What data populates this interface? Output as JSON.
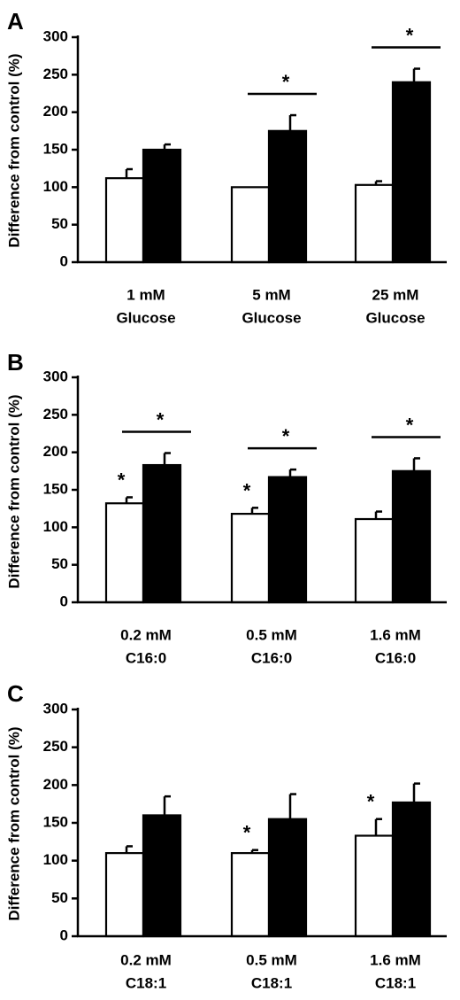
{
  "chart_data": [
    {
      "panel": "A",
      "type": "bar",
      "ylabel": "Difference from control (%)",
      "ylim": [
        0,
        300
      ],
      "yticks": [
        0,
        50,
        100,
        150,
        200,
        250,
        300
      ],
      "categories": [
        [
          "1 mM",
          "Glucose"
        ],
        [
          "5 mM",
          "Glucose"
        ],
        [
          "25 mM",
          "Glucose"
        ]
      ],
      "series": [
        {
          "fill": "#ffffff",
          "values": [
            112,
            100,
            103
          ],
          "errors": [
            12,
            0,
            5
          ],
          "marks": [
            false,
            false,
            false
          ]
        },
        {
          "fill": "#000000",
          "values": [
            150,
            175,
            240
          ],
          "errors": [
            7,
            21,
            18
          ],
          "marks": [
            false,
            false,
            false
          ]
        }
      ],
      "pairs_significant": [
        false,
        true,
        true
      ],
      "sig_mark": "*"
    },
    {
      "panel": "B",
      "type": "bar",
      "ylabel": "Difference from control (%)",
      "ylim": [
        0,
        300
      ],
      "yticks": [
        0,
        50,
        100,
        150,
        200,
        250,
        300
      ],
      "categories": [
        [
          "0.2 mM",
          "C16:0"
        ],
        [
          "0.5 mM",
          "C16:0"
        ],
        [
          "1.6 mM",
          "C16:0"
        ]
      ],
      "series": [
        {
          "fill": "#ffffff",
          "values": [
            132,
            118,
            111
          ],
          "errors": [
            8,
            8,
            10
          ],
          "marks": [
            true,
            true,
            false
          ]
        },
        {
          "fill": "#000000",
          "values": [
            183,
            167,
            175
          ],
          "errors": [
            16,
            10,
            17
          ],
          "marks": [
            false,
            false,
            false
          ]
        }
      ],
      "pairs_significant": [
        true,
        true,
        true
      ],
      "sig_mark": "*"
    },
    {
      "panel": "C",
      "type": "bar",
      "ylabel": "Difference from control (%)",
      "ylim": [
        0,
        300
      ],
      "yticks": [
        0,
        50,
        100,
        150,
        200,
        250,
        300
      ],
      "categories": [
        [
          "0.2 mM",
          "C18:1"
        ],
        [
          "0.5 mM",
          "C18:1"
        ],
        [
          "1.6 mM",
          "C18:1"
        ]
      ],
      "series": [
        {
          "fill": "#ffffff",
          "values": [
            110,
            110,
            133
          ],
          "errors": [
            9,
            4,
            22
          ],
          "marks": [
            false,
            true,
            true
          ]
        },
        {
          "fill": "#000000",
          "values": [
            160,
            155,
            177
          ],
          "errors": [
            25,
            33,
            25
          ],
          "marks": [
            false,
            false,
            false
          ]
        }
      ],
      "pairs_significant": [
        false,
        false,
        false
      ],
      "sig_mark": "*"
    }
  ]
}
